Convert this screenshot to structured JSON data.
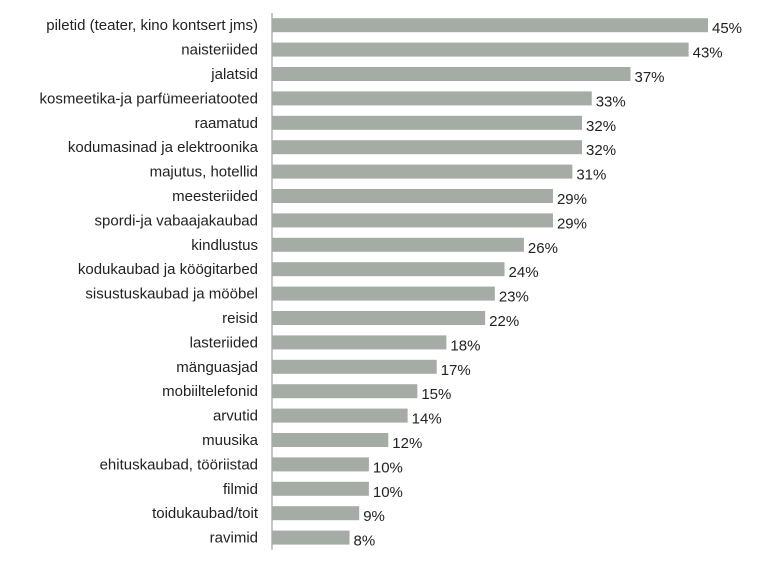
{
  "chart_data": {
    "type": "bar",
    "orientation": "horizontal",
    "categories": [
      "piletid (teater, kino kontsert jms)",
      "naisteriided",
      "jalatsid",
      "kosmeetika-ja parfümeeriatooted",
      "raamatud",
      "kodumasinad ja elektroonika",
      "majutus, hotellid",
      "meesteriided",
      "spordi-ja vabaajakaubad",
      "kindlustus",
      "kodukaubad ja köögitarbed",
      "sisustuskaubad ja mööbel",
      "reisid",
      "lasteriided",
      "mänguasjad",
      "mobiiltelefonid",
      "arvutid",
      "muusika",
      "ehituskaubad, tööriistad",
      "filmid",
      "toidukaubad/toit",
      "ravimid"
    ],
    "values": [
      45,
      43,
      37,
      33,
      32,
      32,
      31,
      29,
      29,
      26,
      24,
      23,
      22,
      18,
      17,
      15,
      14,
      12,
      10,
      10,
      9,
      8
    ],
    "value_labels": [
      "45%",
      "43%",
      "37%",
      "33%",
      "32%",
      "32%",
      "31%",
      "29%",
      "29%",
      "26%",
      "24%",
      "23%",
      "22%",
      "18%",
      "17%",
      "15%",
      "14%",
      "12%",
      "10%",
      "10%",
      "9%",
      "8%"
    ],
    "xlim": [
      0,
      45
    ],
    "grid": false,
    "bar_color": "#a5aca5",
    "axis_color": "#a0a0a0"
  }
}
